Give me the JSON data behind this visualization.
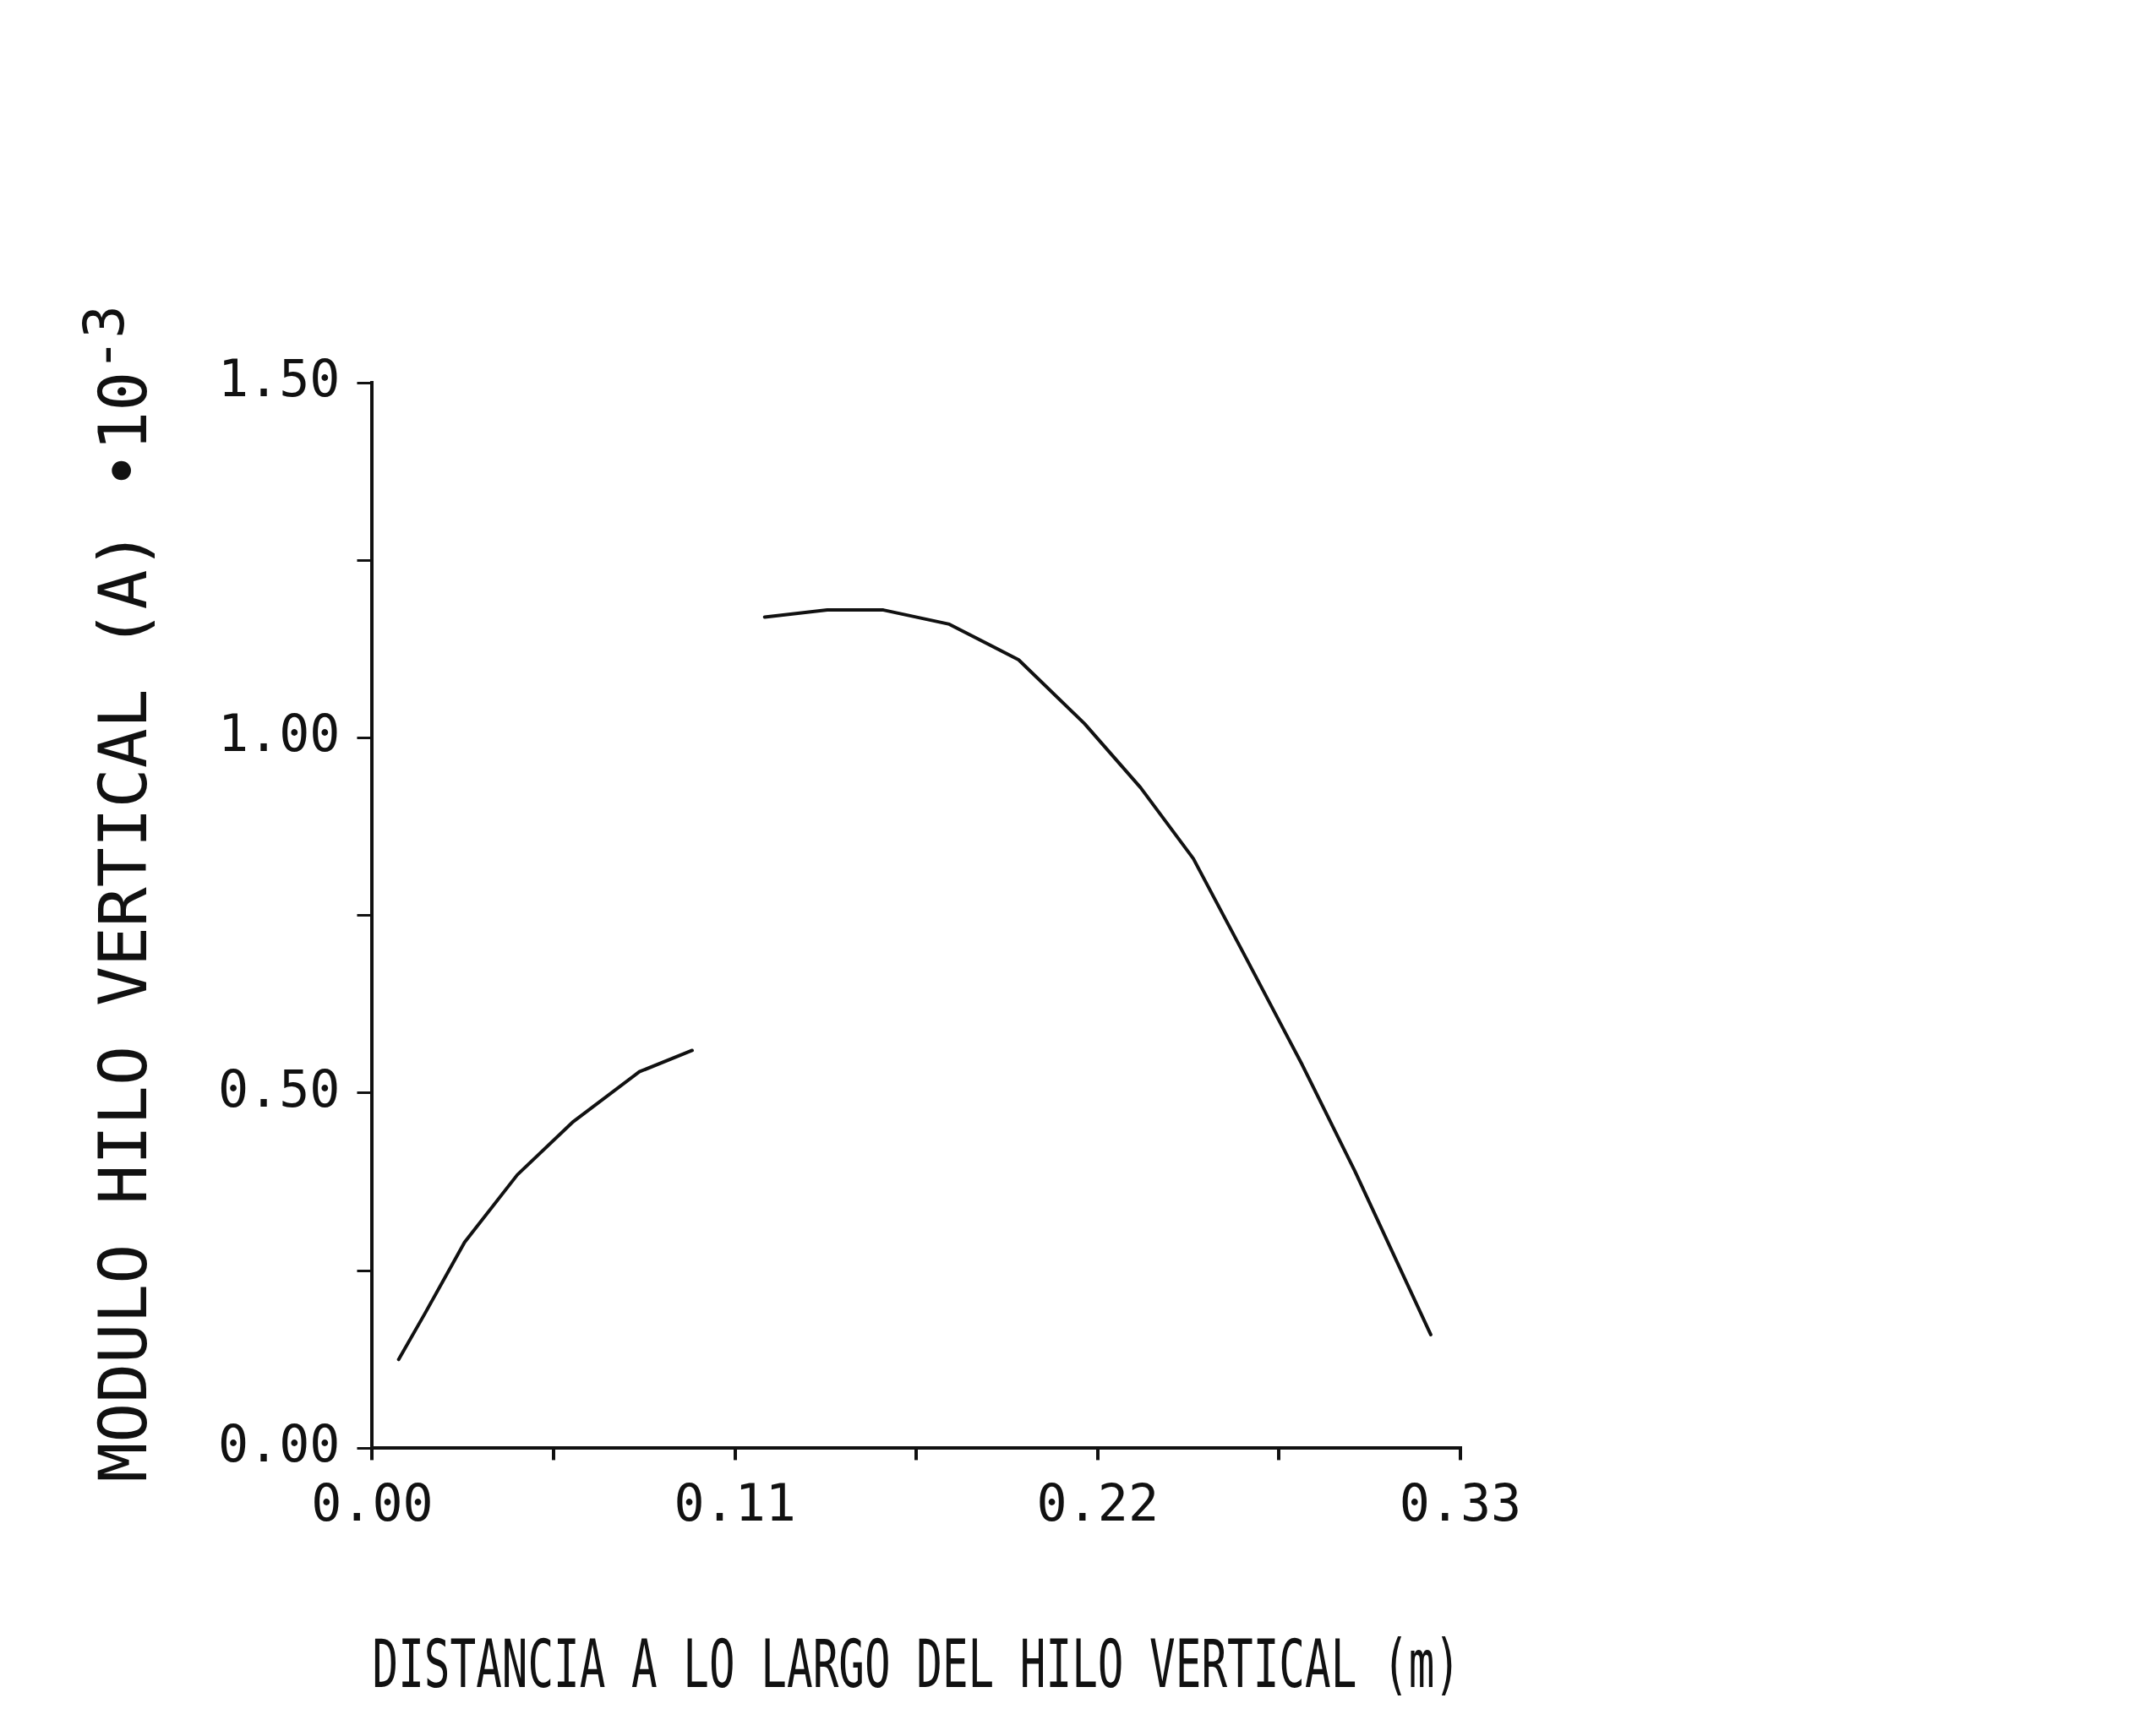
{
  "chart_data": {
    "type": "line",
    "xlabel": "DISTANCIA A LO LARGO DEL HILO VERTICAL (m)",
    "ylabel": "MODULO HILO VERTICAL (A) •10$^{-3}$",
    "xlim": [
      0,
      0.33
    ],
    "xticks": [
      {
        "value": 0,
        "label": "0.00"
      },
      {
        "value": 0.055,
        "label": null
      },
      {
        "value": 0.11,
        "label": "0.11"
      },
      {
        "value": 0.165,
        "label": null
      },
      {
        "value": 0.22,
        "label": "0.22"
      },
      {
        "value": 0.275,
        "label": null
      },
      {
        "value": 0.33,
        "label": "0.33"
      }
    ],
    "ylim": [
      0,
      1.5
    ],
    "yticks": [
      {
        "value": 0,
        "label": "0.00"
      },
      {
        "value": 0.25,
        "label": null
      },
      {
        "value": 0.5,
        "label": "0.50"
      },
      {
        "value": 0.75,
        "label": null
      },
      {
        "value": 1.0,
        "label": "1.00"
      },
      {
        "value": 1.25,
        "label": null
      },
      {
        "value": 1.5,
        "label": "1.50"
      }
    ],
    "grid": false,
    "marker": "none",
    "line_style": "solid",
    "series": [
      {
        "color": "#111111",
        "x": [
          0.008,
          0.016,
          0.028,
          0.044,
          0.061,
          0.081,
          0.097
        ],
        "values": [
          0.125,
          0.19,
          0.29,
          0.385,
          0.46,
          0.53,
          0.56
        ]
      },
      {
        "color": "#111111",
        "x": [
          0.119,
          0.138,
          0.155,
          0.175,
          0.196,
          0.216,
          0.233,
          0.249,
          0.265,
          0.282,
          0.298,
          0.321
        ],
        "values": [
          1.17,
          1.18,
          1.18,
          1.16,
          1.11,
          1.02,
          0.93,
          0.83,
          0.69,
          0.54,
          0.39,
          0.16
        ]
      }
    ]
  }
}
